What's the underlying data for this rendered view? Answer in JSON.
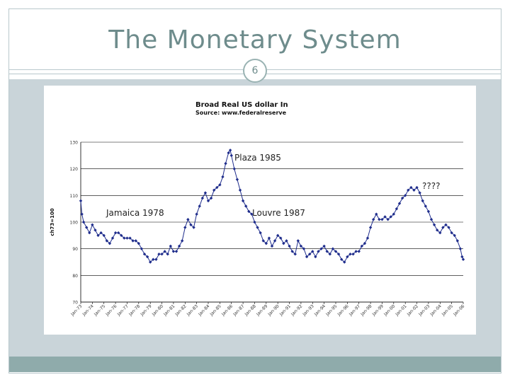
{
  "slide": {
    "title": "The Monetary System",
    "page_number": "6"
  },
  "colors": {
    "accent": "#6e8c8c",
    "panel": "#c9d4d9",
    "footer": "#8fabab",
    "series": "#1f2d8c"
  },
  "chart_data": {
    "type": "line",
    "title": "Broad Real US dollar In",
    "subtitle": "Source: www.federalreserve",
    "ylabel": "ch73=100",
    "ylim": [
      70,
      130
    ],
    "yticks": [
      70,
      80,
      90,
      100,
      110,
      120,
      130
    ],
    "xlim": [
      1973,
      2006
    ],
    "grid": true,
    "x_tick_labels": [
      "Jan-73",
      "Jan-74",
      "Jan-75",
      "Jan-76",
      "Jan-77",
      "Jan-78",
      "Jan-79",
      "Jan-80",
      "Jan-81",
      "Jan-82",
      "Jan-83",
      "Jan-84",
      "Jan-85",
      "Jan-86",
      "Jan-87",
      "Jan-88",
      "Jan-89",
      "Jan-90",
      "Jan-91",
      "Jan-92",
      "Jan-93",
      "Jan-94",
      "Jan-95",
      "Jan-96",
      "Jan-97",
      "Jan-98",
      "Jan-99",
      "Jan-00",
      "Jan-01",
      "Jan-02",
      "Jan-03",
      "Jan-04",
      "Jan-05",
      "Jan-06"
    ],
    "series": [
      {
        "marker": "diamond",
        "points": [
          [
            1973.0,
            108
          ],
          [
            1973.1,
            103
          ],
          [
            1973.25,
            100
          ],
          [
            1973.5,
            98
          ],
          [
            1973.75,
            96
          ],
          [
            1974.0,
            99
          ],
          [
            1974.25,
            97
          ],
          [
            1974.5,
            95
          ],
          [
            1974.75,
            96
          ],
          [
            1975.0,
            95
          ],
          [
            1975.25,
            93
          ],
          [
            1975.5,
            92
          ],
          [
            1975.75,
            94
          ],
          [
            1976.0,
            96
          ],
          [
            1976.25,
            96
          ],
          [
            1976.5,
            95
          ],
          [
            1976.75,
            94
          ],
          [
            1977.0,
            94
          ],
          [
            1977.25,
            94
          ],
          [
            1977.5,
            93
          ],
          [
            1977.75,
            93
          ],
          [
            1978.0,
            92
          ],
          [
            1978.25,
            90
          ],
          [
            1978.5,
            88
          ],
          [
            1978.75,
            87
          ],
          [
            1979.0,
            85
          ],
          [
            1979.25,
            86
          ],
          [
            1979.5,
            86
          ],
          [
            1979.75,
            88
          ],
          [
            1980.0,
            88
          ],
          [
            1980.25,
            89
          ],
          [
            1980.5,
            88
          ],
          [
            1980.75,
            91
          ],
          [
            1981.0,
            89
          ],
          [
            1981.25,
            89
          ],
          [
            1981.5,
            91
          ],
          [
            1981.75,
            93
          ],
          [
            1982.0,
            98
          ],
          [
            1982.25,
            101
          ],
          [
            1982.5,
            99
          ],
          [
            1982.75,
            98
          ],
          [
            1983.0,
            103
          ],
          [
            1983.25,
            106
          ],
          [
            1983.5,
            109
          ],
          [
            1983.75,
            111
          ],
          [
            1984.0,
            108
          ],
          [
            1984.25,
            109
          ],
          [
            1984.5,
            112
          ],
          [
            1984.75,
            113
          ],
          [
            1985.0,
            114
          ],
          [
            1985.25,
            117
          ],
          [
            1985.5,
            122
          ],
          [
            1985.75,
            126
          ],
          [
            1985.9,
            127
          ],
          [
            1986.0,
            125
          ],
          [
            1986.25,
            120
          ],
          [
            1986.5,
            116
          ],
          [
            1986.75,
            112
          ],
          [
            1987.0,
            108
          ],
          [
            1987.25,
            106
          ],
          [
            1987.5,
            104
          ],
          [
            1987.75,
            103
          ],
          [
            1988.0,
            100
          ],
          [
            1988.25,
            98
          ],
          [
            1988.5,
            96
          ],
          [
            1988.75,
            93
          ],
          [
            1989.0,
            92
          ],
          [
            1989.25,
            94
          ],
          [
            1989.5,
            91
          ],
          [
            1989.75,
            93
          ],
          [
            1990.0,
            95
          ],
          [
            1990.25,
            94
          ],
          [
            1990.5,
            92
          ],
          [
            1990.75,
            93
          ],
          [
            1991.0,
            91
          ],
          [
            1991.25,
            89
          ],
          [
            1991.5,
            88
          ],
          [
            1991.75,
            93
          ],
          [
            1992.0,
            91
          ],
          [
            1992.25,
            90
          ],
          [
            1992.5,
            87
          ],
          [
            1992.75,
            88
          ],
          [
            1993.0,
            89
          ],
          [
            1993.25,
            87
          ],
          [
            1993.5,
            89
          ],
          [
            1993.75,
            90
          ],
          [
            1994.0,
            91
          ],
          [
            1994.25,
            89
          ],
          [
            1994.5,
            88
          ],
          [
            1994.75,
            90
          ],
          [
            1995.0,
            89
          ],
          [
            1995.25,
            88
          ],
          [
            1995.5,
            86
          ],
          [
            1995.75,
            85
          ],
          [
            1996.0,
            87
          ],
          [
            1996.25,
            88
          ],
          [
            1996.5,
            88
          ],
          [
            1996.75,
            89
          ],
          [
            1997.0,
            89
          ],
          [
            1997.25,
            91
          ],
          [
            1997.5,
            92
          ],
          [
            1997.75,
            94
          ],
          [
            1998.0,
            98
          ],
          [
            1998.25,
            101
          ],
          [
            1998.5,
            103
          ],
          [
            1998.75,
            101
          ],
          [
            1999.0,
            101
          ],
          [
            1999.25,
            102
          ],
          [
            1999.5,
            101
          ],
          [
            1999.75,
            102
          ],
          [
            2000.0,
            103
          ],
          [
            2000.25,
            105
          ],
          [
            2000.5,
            107
          ],
          [
            2000.75,
            109
          ],
          [
            2001.0,
            110
          ],
          [
            2001.25,
            112
          ],
          [
            2001.5,
            113
          ],
          [
            2001.75,
            112
          ],
          [
            2002.0,
            113
          ],
          [
            2002.25,
            111
          ],
          [
            2002.5,
            108
          ],
          [
            2002.75,
            106
          ],
          [
            2003.0,
            104
          ],
          [
            2003.25,
            101
          ],
          [
            2003.5,
            99
          ],
          [
            2003.75,
            97
          ],
          [
            2004.0,
            96
          ],
          [
            2004.25,
            98
          ],
          [
            2004.5,
            99
          ],
          [
            2004.75,
            98
          ],
          [
            2005.0,
            96
          ],
          [
            2005.25,
            95
          ],
          [
            2005.5,
            93
          ],
          [
            2005.75,
            90
          ],
          [
            2005.9,
            87
          ],
          [
            2006.0,
            86
          ]
        ]
      }
    ],
    "annotations": [
      {
        "text": "Plaza 1985"
      },
      {
        "text": "Jamaica 1978"
      },
      {
        "text": "Louvre 1987"
      },
      {
        "text": "????"
      }
    ]
  }
}
